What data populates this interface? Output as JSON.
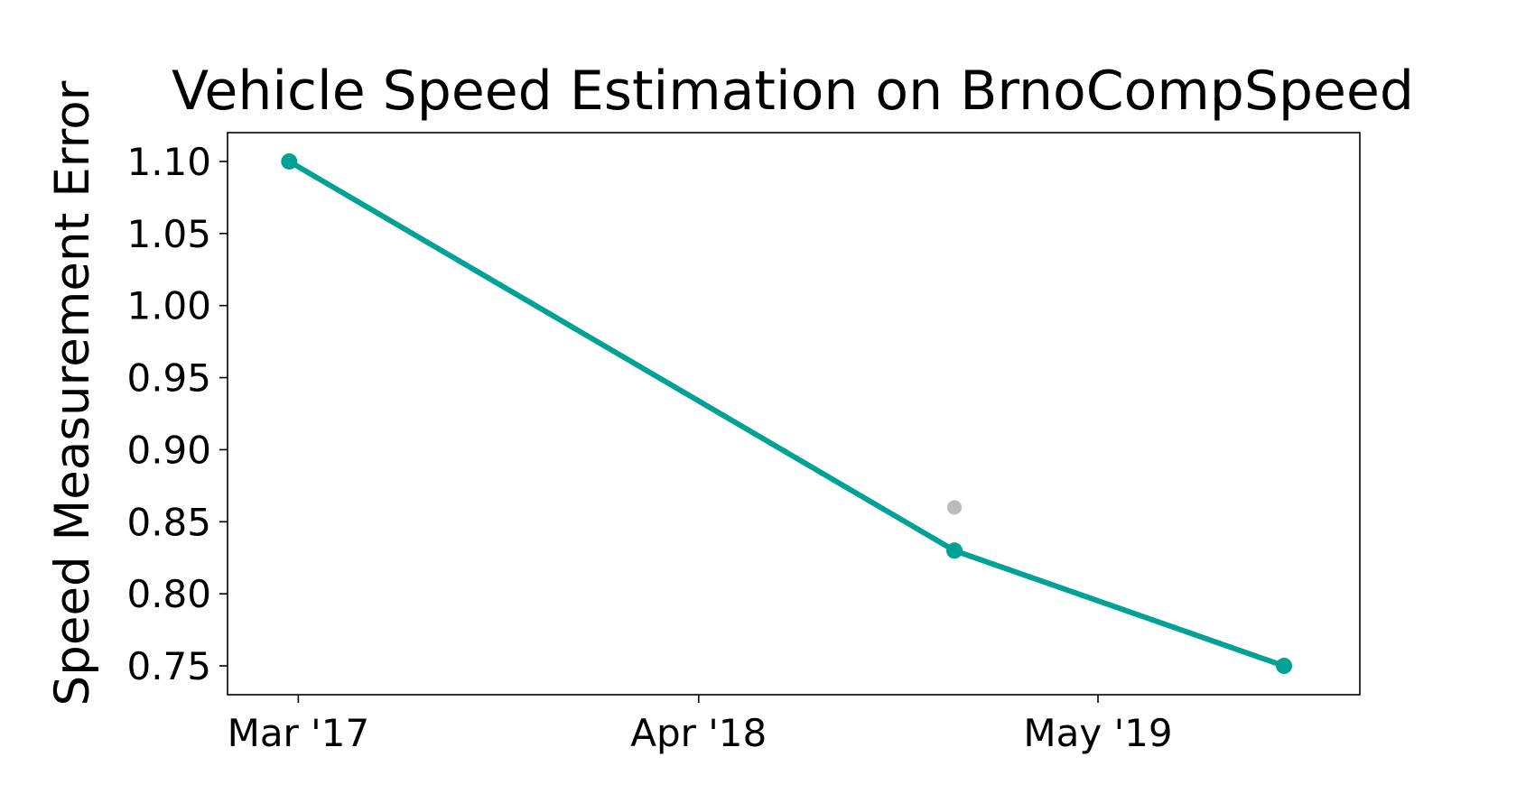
{
  "chart_data": {
    "type": "line",
    "title": "Vehicle Speed Estimation on BrnoCompSpeed",
    "xlabel": "",
    "ylabel": "Speed Measurement Error",
    "x_ticks": [
      "Mar '17",
      "Apr '18",
      "May '19"
    ],
    "y_ticks": [
      "0.75",
      "0.80",
      "0.85",
      "0.90",
      "0.95",
      "1.00",
      "1.05",
      "1.10"
    ],
    "ylim": [
      0.73,
      1.12
    ],
    "grid": false,
    "colors": {
      "line": "#00a295",
      "other_points": "#bbbbbb"
    },
    "series": [
      {
        "x": [
          "2017-02-20",
          "2018-12-10",
          "2019-11-01"
        ],
        "y": [
          1.1,
          0.83,
          0.75
        ]
      }
    ],
    "other_points": [
      {
        "x": "2018-12-10",
        "y": 0.86
      }
    ]
  }
}
